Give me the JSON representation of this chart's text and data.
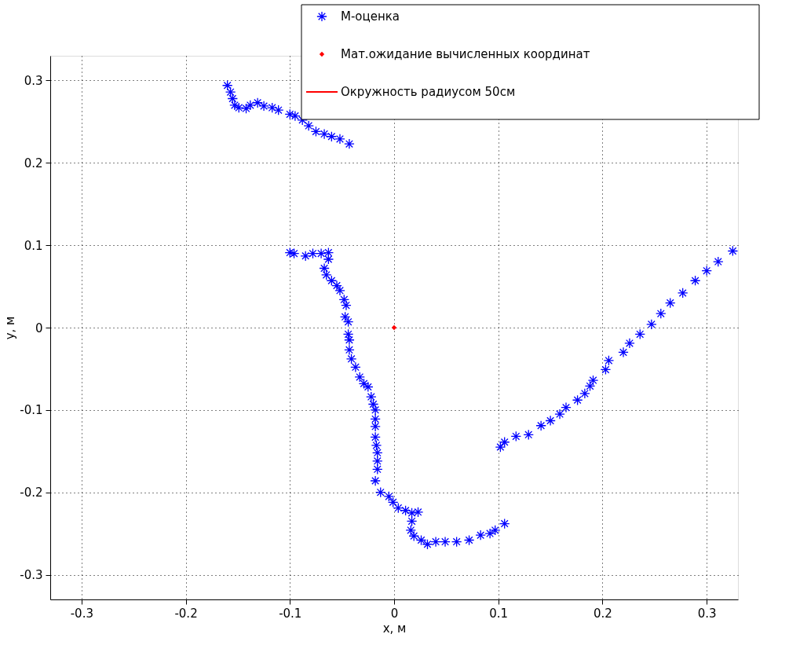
{
  "chart_data": {
    "type": "scatter",
    "xlabel": "x, м",
    "ylabel": "y, м",
    "xlim": [
      -0.33,
      0.33
    ],
    "ylim": [
      -0.33,
      0.33
    ],
    "xticks": [
      -0.3,
      -0.2,
      -0.1,
      0,
      0.1,
      0.2,
      0.3
    ],
    "yticks": [
      -0.3,
      -0.2,
      -0.1,
      0,
      0.1,
      0.2,
      0.3
    ],
    "grid": true,
    "legend": "top right",
    "series": [
      {
        "name": "М-оценка",
        "color": "#0000ff",
        "marker": "cross",
        "x": [
          -0.16,
          -0.157,
          -0.155,
          -0.153,
          -0.149,
          -0.142,
          -0.138,
          -0.131,
          -0.125,
          -0.117,
          -0.111,
          -0.1,
          -0.095,
          -0.088,
          -0.082,
          -0.075,
          -0.067,
          -0.06,
          -0.052,
          -0.043,
          -0.1,
          -0.096,
          -0.085,
          -0.078,
          -0.07,
          -0.063,
          -0.063,
          -0.067,
          -0.065,
          -0.06,
          -0.055,
          -0.052,
          -0.048,
          -0.046,
          -0.047,
          -0.044,
          -0.044,
          -0.043,
          -0.043,
          -0.041,
          -0.037,
          -0.033,
          -0.029,
          -0.025,
          -0.022,
          -0.02,
          -0.018,
          -0.018,
          -0.018,
          -0.018,
          -0.017,
          -0.016,
          -0.016,
          -0.016,
          -0.018,
          -0.013,
          -0.005,
          -0.001,
          0.004,
          0.011,
          0.017,
          0.023,
          0.017,
          0.016,
          0.019,
          0.026,
          0.032,
          0.04,
          0.049,
          0.06,
          0.072,
          0.083,
          0.092,
          0.097,
          0.106,
          0.102,
          0.106,
          0.117,
          0.129,
          0.141,
          0.15,
          0.159,
          0.165,
          0.176,
          0.183,
          0.188,
          0.191,
          0.203,
          0.206,
          0.22,
          0.226,
          0.236,
          0.247,
          0.256,
          0.265,
          0.277,
          0.289,
          0.3,
          0.311,
          0.325
        ],
        "values": [
          0.294,
          0.286,
          0.278,
          0.27,
          0.267,
          0.266,
          0.27,
          0.273,
          0.269,
          0.267,
          0.264,
          0.259,
          0.257,
          0.252,
          0.245,
          0.238,
          0.235,
          0.232,
          0.229,
          0.223,
          0.091,
          0.09,
          0.087,
          0.09,
          0.09,
          0.091,
          0.083,
          0.072,
          0.064,
          0.057,
          0.051,
          0.045,
          0.034,
          0.027,
          0.013,
          0.007,
          -0.008,
          -0.015,
          -0.027,
          -0.038,
          -0.048,
          -0.06,
          -0.068,
          -0.072,
          -0.084,
          -0.093,
          -0.1,
          -0.111,
          -0.12,
          -0.133,
          -0.143,
          -0.152,
          -0.162,
          -0.172,
          -0.186,
          -0.2,
          -0.205,
          -0.212,
          -0.219,
          -0.222,
          -0.225,
          -0.224,
          -0.235,
          -0.246,
          -0.253,
          -0.258,
          -0.263,
          -0.26,
          -0.26,
          -0.26,
          -0.258,
          -0.252,
          -0.25,
          -0.246,
          -0.238,
          -0.145,
          -0.139,
          -0.132,
          -0.13,
          -0.119,
          -0.113,
          -0.105,
          -0.097,
          -0.088,
          -0.08,
          -0.071,
          -0.064,
          -0.051,
          -0.04,
          -0.03,
          -0.019,
          -0.008,
          0.004,
          0.017,
          0.03,
          0.042,
          0.057,
          0.069,
          0.08,
          0.093
        ]
      },
      {
        "name": "Мат.ожидание вычисленных координат",
        "color": "#ff0000",
        "marker": "diamond",
        "x": [
          0
        ],
        "values": [
          0
        ]
      },
      {
        "name": "Окружность радиусом 50см",
        "color": "#ff0000",
        "type": "line"
      }
    ]
  }
}
